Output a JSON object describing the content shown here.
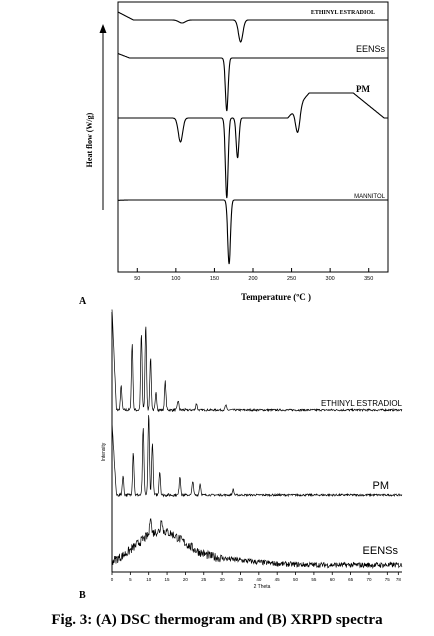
{
  "figure": {
    "caption": "Fig. 3: (A) DSC thermogram and (B) XRPD spectra"
  },
  "chart_data": [
    {
      "panel_label": "A",
      "type": "line",
      "xlabel": "Temperature (ºC )",
      "ylabel": "Heat flow (W/g)",
      "x_ticks": [
        50,
        100,
        150,
        200,
        250,
        300,
        350
      ],
      "xlim": [
        25,
        375
      ],
      "grid": false,
      "series": [
        {
          "name": "ETHINYL ESTRADIOL",
          "color": "#000000",
          "peaks": [
            {
              "x": 108,
              "depth": 3
            },
            {
              "x": 184,
              "depth": 22
            }
          ]
        },
        {
          "name": "EENSs",
          "color": "#000000",
          "peaks": [
            {
              "x": 166,
              "depth": 53
            }
          ]
        },
        {
          "name": "PM",
          "color": "#000000",
          "peaks": [
            {
              "x": 106,
              "depth": 24
            },
            {
              "x": 166,
              "depth": 80
            },
            {
              "x": 180,
              "depth": 40
            },
            {
              "x": 258,
              "depth": 26
            }
          ]
        },
        {
          "name": "MANNITOL",
          "color": "#000000",
          "peaks": [
            {
              "x": 169,
              "depth": 64
            }
          ]
        }
      ]
    },
    {
      "panel_label": "B",
      "type": "line",
      "xlabel": "2 Theta",
      "ylabel": "Intensity",
      "x_ticks": [
        0,
        5,
        10,
        15,
        20,
        25,
        30,
        35,
        40,
        45,
        50,
        55,
        60,
        65,
        70,
        75,
        78
      ],
      "xlim": [
        0,
        79
      ],
      "grid": false,
      "series": [
        {
          "name": "ETHINYL ESTRADIOL",
          "color": "#000000",
          "peaks": [
            {
              "x": 2.5,
              "h": 25
            },
            {
              "x": 5.5,
              "h": 70
            },
            {
              "x": 8.0,
              "h": 80
            },
            {
              "x": 9.2,
              "h": 90
            },
            {
              "x": 10.5,
              "h": 55
            },
            {
              "x": 12.0,
              "h": 18
            },
            {
              "x": 14.5,
              "h": 30
            },
            {
              "x": 18.0,
              "h": 10
            },
            {
              "x": 23.0,
              "h": 7
            },
            {
              "x": 31.0,
              "h": 5
            }
          ]
        },
        {
          "name": "PM",
          "color": "#000000",
          "peaks": [
            {
              "x": 3.0,
              "h": 20
            },
            {
              "x": 5.8,
              "h": 45
            },
            {
              "x": 8.5,
              "h": 70
            },
            {
              "x": 10.0,
              "h": 85
            },
            {
              "x": 11.0,
              "h": 55
            },
            {
              "x": 13.0,
              "h": 25
            },
            {
              "x": 18.5,
              "h": 20
            },
            {
              "x": 22.0,
              "h": 15
            },
            {
              "x": 24.0,
              "h": 12
            },
            {
              "x": 33.0,
              "h": 6
            }
          ]
        },
        {
          "name": "EENSs",
          "color": "#000000",
          "peaks": [
            {
              "x": 10.5,
              "h": 20
            },
            {
              "x": 13.5,
              "h": 14
            }
          ]
        }
      ]
    }
  ]
}
